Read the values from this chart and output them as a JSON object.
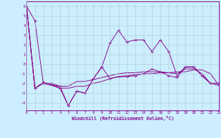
{
  "xlabel": "Windchill (Refroidissement éolien,°C)",
  "background_color": "#cceeff",
  "grid_color": "#aacccc",
  "line_color": "#880088",
  "x_values": [
    0,
    1,
    2,
    3,
    4,
    5,
    6,
    7,
    8,
    9,
    10,
    11,
    12,
    13,
    14,
    15,
    16,
    17,
    18,
    19,
    20,
    21,
    22,
    23
  ],
  "series1": [
    6.0,
    4.5,
    -2.0,
    -2.0,
    -2.3,
    -4.3,
    -2.8,
    -3.0,
    -1.5,
    -0.3,
    2.2,
    3.5,
    2.3,
    2.5,
    2.5,
    1.3,
    2.5,
    1.3,
    -1.2,
    -0.3,
    -0.3,
    -1.2,
    -2.0,
    -2.0
  ],
  "series2": [
    6.0,
    -2.5,
    -1.9,
    -2.1,
    -2.5,
    -4.3,
    -2.8,
    -3.0,
    -1.5,
    -0.3,
    -1.5,
    -1.3,
    -1.3,
    -1.2,
    -1.0,
    -0.5,
    -0.8,
    -1.2,
    -1.4,
    -0.3,
    -0.3,
    -1.2,
    -2.0,
    -2.0
  ],
  "series3": [
    6.0,
    -2.5,
    -2.0,
    -2.2,
    -2.5,
    -2.5,
    -2.3,
    -2.3,
    -2.0,
    -1.8,
    -1.5,
    -1.3,
    -1.2,
    -1.1,
    -1.0,
    -1.0,
    -0.9,
    -0.9,
    -1.0,
    -0.5,
    -0.5,
    -1.0,
    -2.0,
    -2.2
  ],
  "series4": [
    6.0,
    -2.5,
    -2.0,
    -2.2,
    -2.3,
    -2.3,
    -1.8,
    -1.8,
    -1.6,
    -1.4,
    -1.2,
    -1.0,
    -0.9,
    -0.9,
    -0.8,
    -0.8,
    -0.8,
    -0.9,
    -0.8,
    -0.8,
    -0.6,
    -0.6,
    -1.0,
    -2.2
  ],
  "ylim": [
    -4.8,
    6.5
  ],
  "xlim": [
    0,
    23
  ],
  "yticks": [
    -4,
    -3,
    -2,
    -1,
    0,
    1,
    2,
    3,
    4,
    5,
    6
  ],
  "xticks": [
    0,
    1,
    2,
    3,
    4,
    5,
    6,
    7,
    8,
    9,
    10,
    11,
    12,
    13,
    14,
    15,
    16,
    17,
    18,
    19,
    20,
    21,
    22,
    23
  ]
}
